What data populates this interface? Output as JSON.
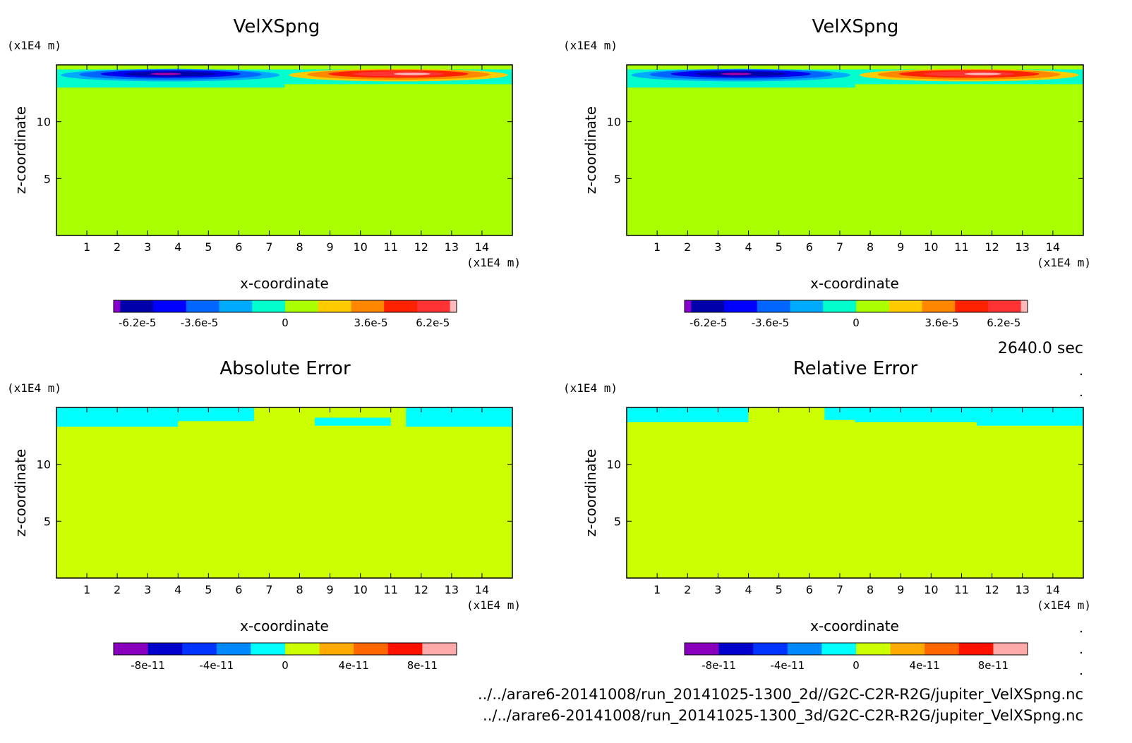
{
  "time_label": "2640.0 sec",
  "file_paths": [
    "../../arare6-20141008/run_20141025-1300_2d//G2C-C2R-R2G/jupiter_VelXSpng.nc",
    "../../arare6-20141008/run_20141025-1300_3d/G2C-C2R-R2G/jupiter_VelXSpng.nc"
  ],
  "colors": {
    "cyan": "#00ffff",
    "yellow_green_top": "#aaff00",
    "yellow_green_bottom": "#ccff00"
  },
  "chart_data": [
    {
      "type": "heatmap",
      "title": "VelXSpng",
      "xlabel": "x-coordinate",
      "ylabel": "z-coordinate",
      "x_unit": "(x1E4 m)",
      "y_unit": "(x1E4 m)",
      "xlim": [
        0,
        15
      ],
      "ylim": [
        0,
        15
      ],
      "x_ticks": [
        1,
        2,
        3,
        4,
        5,
        6,
        7,
        8,
        9,
        10,
        11,
        12,
        13,
        14
      ],
      "y_ticks": [
        5,
        10
      ],
      "background_color": "#aaff00",
      "features": [
        {
          "kind": "band",
          "x0": 0,
          "x1": 7.5,
          "y0": 13,
          "y1": 14.6,
          "color": "#00ffcc"
        },
        {
          "kind": "band",
          "x0": 7.5,
          "x1": 15,
          "y0": 13.3,
          "y1": 14.6,
          "color": "#00ffcc"
        },
        {
          "kind": "ellipse",
          "cx": 3.75,
          "cy": 14.1,
          "rx": 3.6,
          "ry": 0.55,
          "color": "#00aaff"
        },
        {
          "kind": "ellipse",
          "cx": 3.75,
          "cy": 14.15,
          "rx": 3.0,
          "ry": 0.45,
          "color": "#0066ff"
        },
        {
          "kind": "ellipse",
          "cx": 3.75,
          "cy": 14.2,
          "rx": 2.3,
          "ry": 0.33,
          "color": "#0000ee"
        },
        {
          "kind": "ellipse",
          "cx": 3.75,
          "cy": 14.2,
          "rx": 1.5,
          "ry": 0.22,
          "color": "#0000aa"
        },
        {
          "kind": "ellipse",
          "cx": 3.6,
          "cy": 14.2,
          "rx": 0.5,
          "ry": 0.1,
          "color": "#aa00aa"
        },
        {
          "kind": "ellipse",
          "cx": 11.25,
          "cy": 14.1,
          "rx": 3.6,
          "ry": 0.55,
          "color": "#ffcc00"
        },
        {
          "kind": "ellipse",
          "cx": 11.25,
          "cy": 14.15,
          "rx": 3.0,
          "ry": 0.45,
          "color": "#ff8800"
        },
        {
          "kind": "ellipse",
          "cx": 11.25,
          "cy": 14.2,
          "rx": 2.3,
          "ry": 0.33,
          "color": "#ff2200"
        },
        {
          "kind": "ellipse",
          "cx": 11.25,
          "cy": 14.2,
          "rx": 1.5,
          "ry": 0.22,
          "color": "#ff3333"
        },
        {
          "kind": "ellipse",
          "cx": 11.7,
          "cy": 14.2,
          "rx": 0.6,
          "ry": 0.1,
          "color": "#ffbbbb"
        }
      ],
      "colorbar": {
        "colors": [
          "#8800cc",
          "#0000aa",
          "#0000ff",
          "#0066ff",
          "#00aaff",
          "#00ffcc",
          "#aaff00",
          "#ffcc00",
          "#ff8800",
          "#ff2200",
          "#ff3333",
          "#ffbbbb"
        ],
        "weights": [
          0.2,
          1,
          1,
          1,
          1,
          1,
          1,
          1,
          1,
          1,
          1,
          0.2
        ],
        "labels": [
          "-6.2e-5",
          "-3.6e-5",
          "0",
          "3.6e-5",
          "6.2e-5"
        ],
        "label_values": [
          -6.2e-05,
          -3.6e-05,
          0,
          3.6e-05,
          6.2e-05
        ],
        "range": [
          -7.2e-05,
          7.2e-05
        ]
      }
    },
    {
      "type": "heatmap",
      "title": "VelXSpng",
      "xlabel": "x-coordinate",
      "ylabel": "z-coordinate",
      "x_unit": "(x1E4 m)",
      "y_unit": "(x1E4 m)",
      "xlim": [
        0,
        15
      ],
      "ylim": [
        0,
        15
      ],
      "x_ticks": [
        1,
        2,
        3,
        4,
        5,
        6,
        7,
        8,
        9,
        10,
        11,
        12,
        13,
        14
      ],
      "y_ticks": [
        5,
        10
      ],
      "background_color": "#aaff00",
      "features": [
        {
          "kind": "band",
          "x0": 0,
          "x1": 7.5,
          "y0": 13,
          "y1": 14.6,
          "color": "#00ffcc"
        },
        {
          "kind": "band",
          "x0": 7.5,
          "x1": 15,
          "y0": 13.3,
          "y1": 14.6,
          "color": "#00ffcc"
        },
        {
          "kind": "ellipse",
          "cx": 3.75,
          "cy": 14.1,
          "rx": 3.6,
          "ry": 0.55,
          "color": "#00aaff"
        },
        {
          "kind": "ellipse",
          "cx": 3.75,
          "cy": 14.15,
          "rx": 3.0,
          "ry": 0.45,
          "color": "#0066ff"
        },
        {
          "kind": "ellipse",
          "cx": 3.75,
          "cy": 14.2,
          "rx": 2.3,
          "ry": 0.33,
          "color": "#0000ee"
        },
        {
          "kind": "ellipse",
          "cx": 3.75,
          "cy": 14.2,
          "rx": 1.5,
          "ry": 0.22,
          "color": "#0000aa"
        },
        {
          "kind": "ellipse",
          "cx": 3.6,
          "cy": 14.2,
          "rx": 0.5,
          "ry": 0.1,
          "color": "#aa00aa"
        },
        {
          "kind": "ellipse",
          "cx": 11.25,
          "cy": 14.1,
          "rx": 3.6,
          "ry": 0.55,
          "color": "#ffcc00"
        },
        {
          "kind": "ellipse",
          "cx": 11.25,
          "cy": 14.15,
          "rx": 3.0,
          "ry": 0.45,
          "color": "#ff8800"
        },
        {
          "kind": "ellipse",
          "cx": 11.25,
          "cy": 14.2,
          "rx": 2.3,
          "ry": 0.33,
          "color": "#ff2200"
        },
        {
          "kind": "ellipse",
          "cx": 11.25,
          "cy": 14.2,
          "rx": 1.5,
          "ry": 0.22,
          "color": "#ff3333"
        },
        {
          "kind": "ellipse",
          "cx": 11.7,
          "cy": 14.2,
          "rx": 0.6,
          "ry": 0.1,
          "color": "#ffbbbb"
        }
      ],
      "colorbar": {
        "colors": [
          "#8800cc",
          "#0000aa",
          "#0000ff",
          "#0066ff",
          "#00aaff",
          "#00ffcc",
          "#aaff00",
          "#ffcc00",
          "#ff8800",
          "#ff2200",
          "#ff3333",
          "#ffbbbb"
        ],
        "weights": [
          0.2,
          1,
          1,
          1,
          1,
          1,
          1,
          1,
          1,
          1,
          1,
          0.2
        ],
        "labels": [
          "-6.2e-5",
          "-3.6e-5",
          "0",
          "3.6e-5",
          "6.2e-5"
        ],
        "label_values": [
          -6.2e-05,
          -3.6e-05,
          0,
          3.6e-05,
          6.2e-05
        ],
        "range": [
          -7.2e-05,
          7.2e-05
        ]
      }
    },
    {
      "type": "heatmap",
      "title": "Absolute Error",
      "xlabel": "x-coordinate",
      "ylabel": "z-coordinate",
      "x_unit": "(x1E4 m)",
      "y_unit": "(x1E4 m)",
      "xlim": [
        0,
        15
      ],
      "ylim": [
        0,
        15
      ],
      "x_ticks": [
        1,
        2,
        3,
        4,
        5,
        6,
        7,
        8,
        9,
        10,
        11,
        12,
        13,
        14
      ],
      "y_ticks": [
        5,
        10
      ],
      "background_color": "#ccff00",
      "features": [
        {
          "kind": "band",
          "x0": 0,
          "x1": 4.0,
          "y0": 13.3,
          "y1": 15,
          "color": "#00ffff"
        },
        {
          "kind": "band",
          "x0": 4.0,
          "x1": 6.5,
          "y0": 13.8,
          "y1": 15,
          "color": "#00ffff"
        },
        {
          "kind": "band",
          "x0": 8.5,
          "x1": 11.0,
          "y0": 13.4,
          "y1": 14.1,
          "color": "#00ffff"
        },
        {
          "kind": "band",
          "x0": 11.5,
          "x1": 15,
          "y0": 13.3,
          "y1": 15,
          "color": "#00ffff"
        }
      ],
      "colorbar": {
        "colors": [
          "#8800bb",
          "#0000cc",
          "#0033ff",
          "#0088ff",
          "#00ffff",
          "#ccff00",
          "#ffaa00",
          "#ff6600",
          "#ff1100",
          "#ffaaaa"
        ],
        "weights": [
          1,
          1,
          1,
          1,
          1,
          1,
          1,
          1,
          1,
          1
        ],
        "labels": [
          "-8e-11",
          "-4e-11",
          "0",
          "4e-11",
          "8e-11"
        ],
        "label_values": [
          -8e-11,
          -4e-11,
          0,
          4e-11,
          8e-11
        ],
        "range": [
          -1e-10,
          1e-10
        ]
      }
    },
    {
      "type": "heatmap",
      "title": "Relative Error",
      "xlabel": "x-coordinate",
      "ylabel": "z-coordinate",
      "x_unit": "(x1E4 m)",
      "y_unit": "(x1E4 m)",
      "xlim": [
        0,
        15
      ],
      "ylim": [
        0,
        15
      ],
      "x_ticks": [
        1,
        2,
        3,
        4,
        5,
        6,
        7,
        8,
        9,
        10,
        11,
        12,
        13,
        14
      ],
      "y_ticks": [
        5,
        10
      ],
      "background_color": "#ccff00",
      "features": [
        {
          "kind": "band",
          "x0": 0,
          "x1": 4.0,
          "y0": 13.7,
          "y1": 15,
          "color": "#00ffff"
        },
        {
          "kind": "band",
          "x0": 6.5,
          "x1": 7.5,
          "y0": 13.9,
          "y1": 15,
          "color": "#00ffff"
        },
        {
          "kind": "band",
          "x0": 7.5,
          "x1": 11.5,
          "y0": 13.7,
          "y1": 15,
          "color": "#00ffff"
        },
        {
          "kind": "band",
          "x0": 11.5,
          "x1": 15,
          "y0": 13.4,
          "y1": 15,
          "color": "#00ffff"
        }
      ],
      "colorbar": {
        "colors": [
          "#8800bb",
          "#0000cc",
          "#0033ff",
          "#0088ff",
          "#00ffff",
          "#ccff00",
          "#ffaa00",
          "#ff6600",
          "#ff1100",
          "#ffaaaa"
        ],
        "weights": [
          1,
          1,
          1,
          1,
          1,
          1,
          1,
          1,
          1,
          1
        ],
        "labels": [
          "-8e-11",
          "-4e-11",
          "0",
          "4e-11",
          "8e-11"
        ],
        "label_values": [
          -8e-11,
          -4e-11,
          0,
          4e-11,
          8e-11
        ],
        "range": [
          -1e-10,
          1e-10
        ]
      }
    }
  ]
}
